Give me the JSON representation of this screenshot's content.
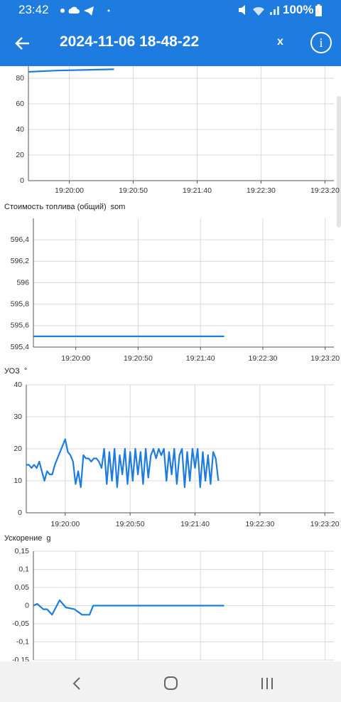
{
  "status_bar": {
    "time": "23:42",
    "battery": "100%"
  },
  "app_bar": {
    "title": "2024-11-06 18-48-22",
    "close": "x",
    "info": "i"
  },
  "chart_data": [
    {
      "type": "line",
      "x": [
        "19:19:28",
        "19:19:50",
        "19:20:35"
      ],
      "series": [
        {
          "color": "#1e7ce0",
          "values": [
            85,
            86,
            87
          ]
        }
      ],
      "xlim": [
        "19:19:28",
        "19:23:27"
      ],
      "xticks": [
        "19:20:00",
        "19:20:50",
        "19:21:40",
        "19:22:30",
        "19:23:20"
      ],
      "ylim": [
        0,
        100
      ],
      "yticks": [
        0,
        20,
        40,
        60,
        80
      ],
      "grid": true
    },
    {
      "type": "line",
      "title": "Стоимость топлива (общий)",
      "unit": "som",
      "x": [
        "19:19:26",
        "19:21:59"
      ],
      "series": [
        {
          "color": "#1e7ce0",
          "values": [
            595.5,
            595.5
          ]
        }
      ],
      "xlim": [
        "19:19:26",
        "19:23:27"
      ],
      "xticks": [
        "19:20:00",
        "19:20:50",
        "19:21:40",
        "19:22:30",
        "19:23:20"
      ],
      "ylim": [
        595.4,
        596.6
      ],
      "yticks": [
        {
          "value": 595.4,
          "label": "595,4"
        },
        {
          "value": 595.6,
          "label": "595,6"
        },
        {
          "value": 595.8,
          "label": "595,8"
        },
        596,
        {
          "value": 596.2,
          "label": "596,2"
        },
        {
          "value": 596.4,
          "label": "596,4"
        }
      ],
      "grid": true
    },
    {
      "type": "line",
      "title": "УОЗ",
      "unit": "°",
      "x": [
        "19:19:30",
        "19:19:32",
        "19:19:34",
        "19:19:36",
        "19:19:38",
        "19:19:40",
        "19:19:42",
        "19:19:44",
        "19:19:46",
        "19:19:48",
        "19:19:50",
        "19:19:52",
        "19:19:54",
        "19:19:56",
        "19:19:58",
        "19:20:00",
        "19:20:02",
        "19:20:04",
        "19:20:06",
        "19:20:08",
        "19:20:10",
        "19:20:12",
        "19:20:14",
        "19:20:16",
        "19:20:18",
        "19:20:20",
        "19:20:22",
        "19:20:24",
        "19:20:26",
        "19:20:28",
        "19:20:30",
        "19:20:32",
        "19:20:34",
        "19:20:36",
        "19:20:38",
        "19:20:40",
        "19:20:42",
        "19:20:44",
        "19:20:46",
        "19:20:48",
        "19:20:50",
        "19:20:52",
        "19:20:54",
        "19:20:56",
        "19:20:58",
        "19:21:00",
        "19:21:02",
        "19:21:04",
        "19:21:06",
        "19:21:08",
        "19:21:10",
        "19:21:12",
        "19:21:14",
        "19:21:16",
        "19:21:18",
        "19:21:20",
        "19:21:22",
        "19:21:24",
        "19:21:26",
        "19:21:28",
        "19:21:30",
        "19:21:32",
        "19:21:34",
        "19:21:36",
        "19:21:38",
        "19:21:40",
        "19:21:42",
        "19:21:44",
        "19:21:46",
        "19:21:48",
        "19:21:50",
        "19:21:52",
        "19:21:54",
        "19:21:56",
        "19:21:58"
      ],
      "series": [
        {
          "color": "#1e7ce0",
          "values": [
            15,
            15,
            14,
            15,
            14,
            16,
            13,
            10,
            13,
            12,
            12,
            15,
            17,
            19,
            21,
            23,
            19,
            18,
            16,
            9,
            13,
            8,
            18,
            17,
            17,
            16,
            17,
            17,
            16,
            14,
            20,
            9,
            19,
            10,
            20,
            8,
            18,
            12,
            20,
            9,
            19,
            10,
            20,
            12,
            19,
            9,
            20,
            11,
            18,
            20,
            17,
            20,
            18,
            20,
            10,
            19,
            12,
            20,
            9,
            18,
            20,
            8,
            19,
            10,
            20,
            14,
            20,
            8,
            19,
            10,
            18,
            9,
            19,
            17,
            10
          ]
        }
      ],
      "xlim": [
        "19:19:30",
        "19:23:27"
      ],
      "xticks": [
        "19:20:00",
        "19:20:50",
        "19:21:40",
        "19:22:30",
        "19:23:20"
      ],
      "ylim": [
        0,
        40
      ],
      "yticks": [
        0,
        10,
        20,
        30,
        40
      ],
      "grid": true
    },
    {
      "type": "line",
      "title": "Ускорение",
      "unit": "g",
      "x": [
        "19:19:26",
        "19:19:29",
        "19:19:34",
        "19:19:37",
        "19:19:41",
        "19:19:47",
        "19:19:52",
        "19:19:59",
        "19:20:05",
        "19:20:11",
        "19:20:14",
        "19:21:59"
      ],
      "series": [
        {
          "color": "#1e7ce0",
          "values": [
            0,
            0.005,
            -0.01,
            -0.01,
            -0.025,
            0.015,
            -0.005,
            -0.01,
            -0.025,
            -0.025,
            0,
            0
          ]
        }
      ],
      "xlim": [
        "19:19:26",
        "19:23:27"
      ],
      "xticks": [
        "19:20:00",
        "19:20:50",
        "19:21:40",
        "19:22:30",
        "19:23:20"
      ],
      "ylim": [
        -0.15,
        0.15
      ],
      "yticks": [
        {
          "value": -0.15,
          "label": "-0,15"
        },
        {
          "value": -0.1,
          "label": "-0,1"
        },
        {
          "value": -0.05,
          "label": "-0,05"
        },
        0,
        {
          "value": 0.05,
          "label": "0,05"
        },
        {
          "value": 0.1,
          "label": "0,1"
        },
        {
          "value": 0.15,
          "label": "0,15"
        }
      ],
      "grid": true
    }
  ]
}
